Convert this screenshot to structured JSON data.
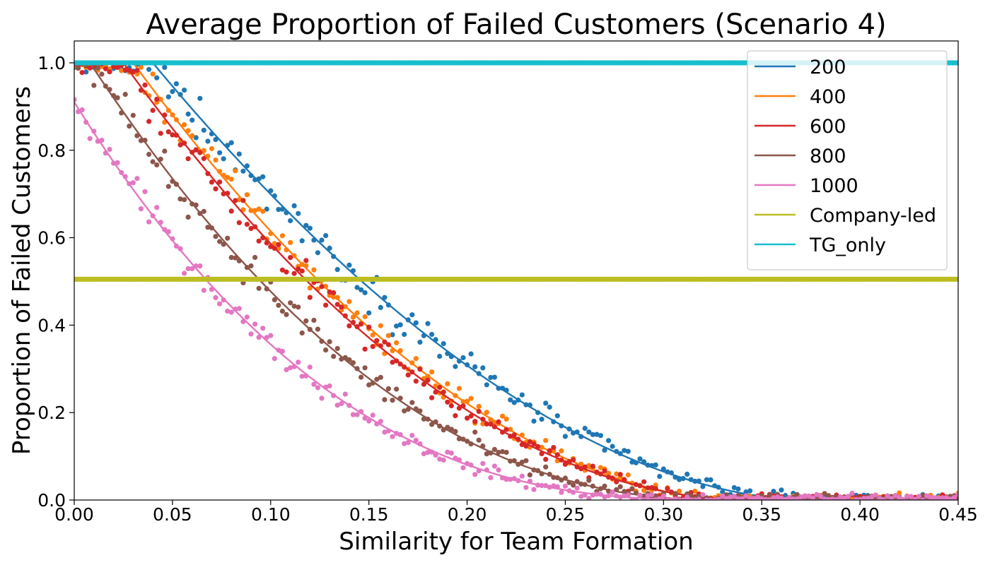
{
  "chart_data": {
    "type": "scatter",
    "title": "Average Proportion of Failed Customers (Scenario 4)",
    "xlabel": "Similarity for Team Formation",
    "ylabel": "Proportion of Failed Customers",
    "xlim": [
      0.0,
      0.45
    ],
    "ylim": [
      0.0,
      1.05
    ],
    "xticks": [
      "0.00",
      "0.05",
      "0.10",
      "0.15",
      "0.20",
      "0.25",
      "0.30",
      "0.35",
      "0.40",
      "0.45"
    ],
    "yticks": [
      "0.0",
      "0.2",
      "0.4",
      "0.6",
      "0.8",
      "1.0"
    ],
    "legend_position": "top-right",
    "series": [
      {
        "name": "200",
        "color": "#1f77b4",
        "fit_x0": 0.04,
        "fit_x1": 0.373,
        "fit_exp": 1.8,
        "noise": 0.045
      },
      {
        "name": "400",
        "color": "#ff7f0e",
        "fit_x0": 0.03,
        "fit_x1": 0.34,
        "fit_exp": 1.9,
        "noise": 0.04
      },
      {
        "name": "600",
        "color": "#d62728",
        "fit_x0": 0.025,
        "fit_x1": 0.345,
        "fit_exp": 2.0,
        "noise": 0.04
      },
      {
        "name": "800",
        "color": "#8c564b",
        "fit_x0": 0.008,
        "fit_x1": 0.33,
        "fit_exp": 2.2,
        "noise": 0.04
      },
      {
        "name": "1000",
        "color": "#e377c2",
        "fit_x0": 0.0,
        "fit_x1": 0.33,
        "fit_exp": 2.6,
        "noise": 0.035,
        "fit_y0": 0.91
      },
      {
        "name": "Company-led",
        "color": "#bcbd22",
        "constant": 0.505
      },
      {
        "name": "TG_only",
        "color": "#17becf",
        "constant": 1.0
      }
    ]
  }
}
